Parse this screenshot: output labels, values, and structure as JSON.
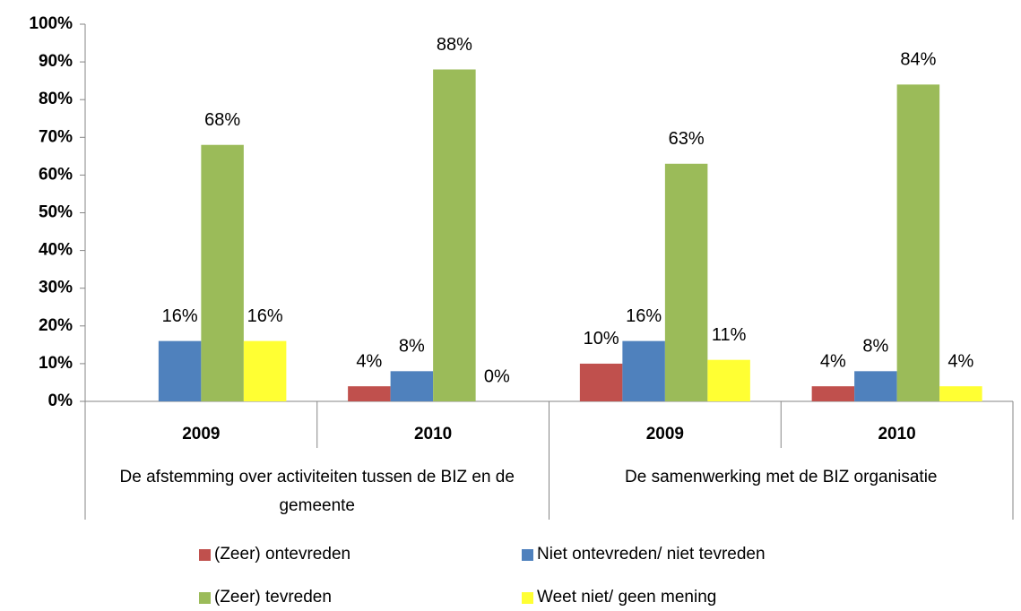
{
  "chart_data": {
    "type": "bar",
    "categories": [
      "2009",
      "2010",
      "2009",
      "2010"
    ],
    "category_groups": [
      "De afstemming over activiteiten tussen de BIZ en de gemeente",
      "De samenwerking met de BIZ organisatie"
    ],
    "series": [
      {
        "name": "(Zeer) ontevreden",
        "color": "#c0504d",
        "values": [
          null,
          4,
          10,
          4
        ],
        "value_labels": [
          null,
          "4%",
          "10%",
          "4%"
        ]
      },
      {
        "name": "Niet ontevreden/ niet tevreden",
        "color": "#4f81bd",
        "values": [
          16,
          8,
          16,
          8
        ],
        "value_labels": [
          "16%",
          "8%",
          "16%",
          "8%"
        ]
      },
      {
        "name": "(Zeer) tevreden",
        "color": "#9bbb59",
        "values": [
          68,
          88,
          63,
          84
        ],
        "value_labels": [
          "68%",
          "88%",
          "63%",
          "84%"
        ]
      },
      {
        "name": "Weet niet/ geen mening",
        "color": "#ffff33",
        "values": [
          16,
          0,
          11,
          4
        ],
        "value_labels": [
          "16%",
          "0%",
          "11%",
          "4%"
        ]
      }
    ],
    "ylim": [
      0,
      100
    ],
    "yticks": [
      {
        "value": 0,
        "label": "0%"
      },
      {
        "value": 10,
        "label": "10%"
      },
      {
        "value": 20,
        "label": "20%"
      },
      {
        "value": 30,
        "label": "30%"
      },
      {
        "value": 40,
        "label": "40%"
      },
      {
        "value": 50,
        "label": "50%"
      },
      {
        "value": 60,
        "label": "60%"
      },
      {
        "value": 70,
        "label": "70%"
      },
      {
        "value": 80,
        "label": "80%"
      },
      {
        "value": 90,
        "label": "90%"
      },
      {
        "value": 100,
        "label": "100%"
      }
    ],
    "grid": false,
    "legend": "bottom"
  }
}
